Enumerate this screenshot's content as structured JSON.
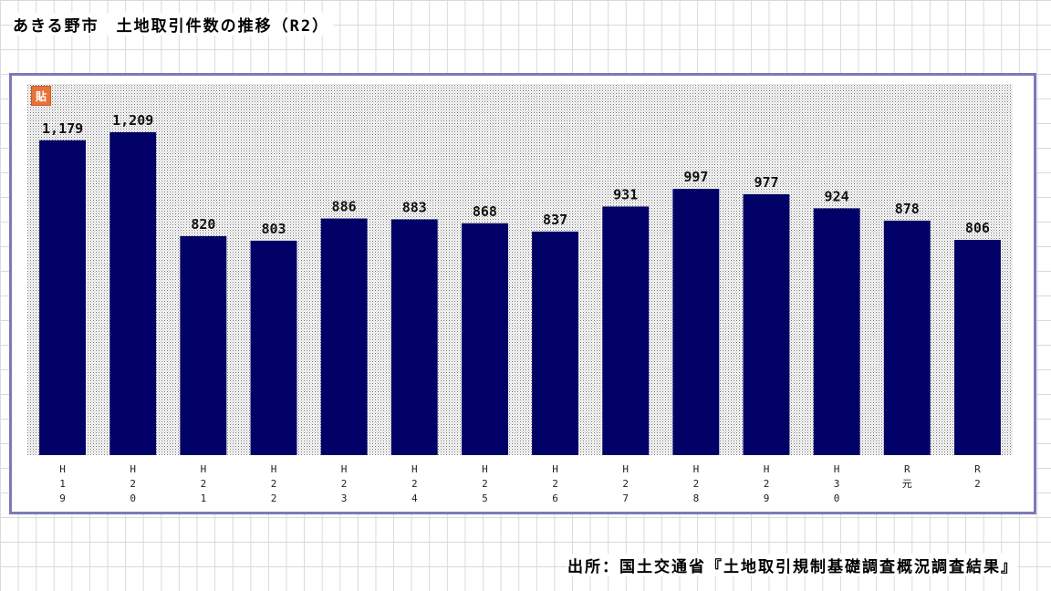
{
  "page_title": "あきる野市　土地取引件数の推移（R2）",
  "source": "出所：国土交通省『土地取引規制基礎調査概況調査結果』",
  "paste_icon_glyph": "貼",
  "chart_data": {
    "type": "bar",
    "title": "",
    "xlabel": "",
    "ylabel": "",
    "categories": [
      [
        "H",
        "1",
        "9"
      ],
      [
        "H",
        "2",
        "0"
      ],
      [
        "H",
        "2",
        "1"
      ],
      [
        "H",
        "2",
        "2"
      ],
      [
        "H",
        "2",
        "3"
      ],
      [
        "H",
        "2",
        "4"
      ],
      [
        "H",
        "2",
        "5"
      ],
      [
        "H",
        "2",
        "6"
      ],
      [
        "H",
        "2",
        "7"
      ],
      [
        "H",
        "2",
        "8"
      ],
      [
        "H",
        "2",
        "9"
      ],
      [
        "H",
        "3",
        "0"
      ],
      [
        "R",
        "元"
      ],
      [
        "R",
        "2"
      ]
    ],
    "values": [
      1179,
      1209,
      820,
      803,
      886,
      883,
      868,
      837,
      931,
      997,
      977,
      924,
      878,
      806
    ],
    "data_labels": [
      "1,179",
      "1,209",
      "820",
      "803",
      "886",
      "883",
      "868",
      "837",
      "931",
      "997",
      "977",
      "924",
      "878",
      "806"
    ],
    "ylim": [
      0,
      1390
    ],
    "bar_color": "#000066",
    "background_pattern": "dotted gray",
    "grid": false,
    "legend": "none"
  }
}
